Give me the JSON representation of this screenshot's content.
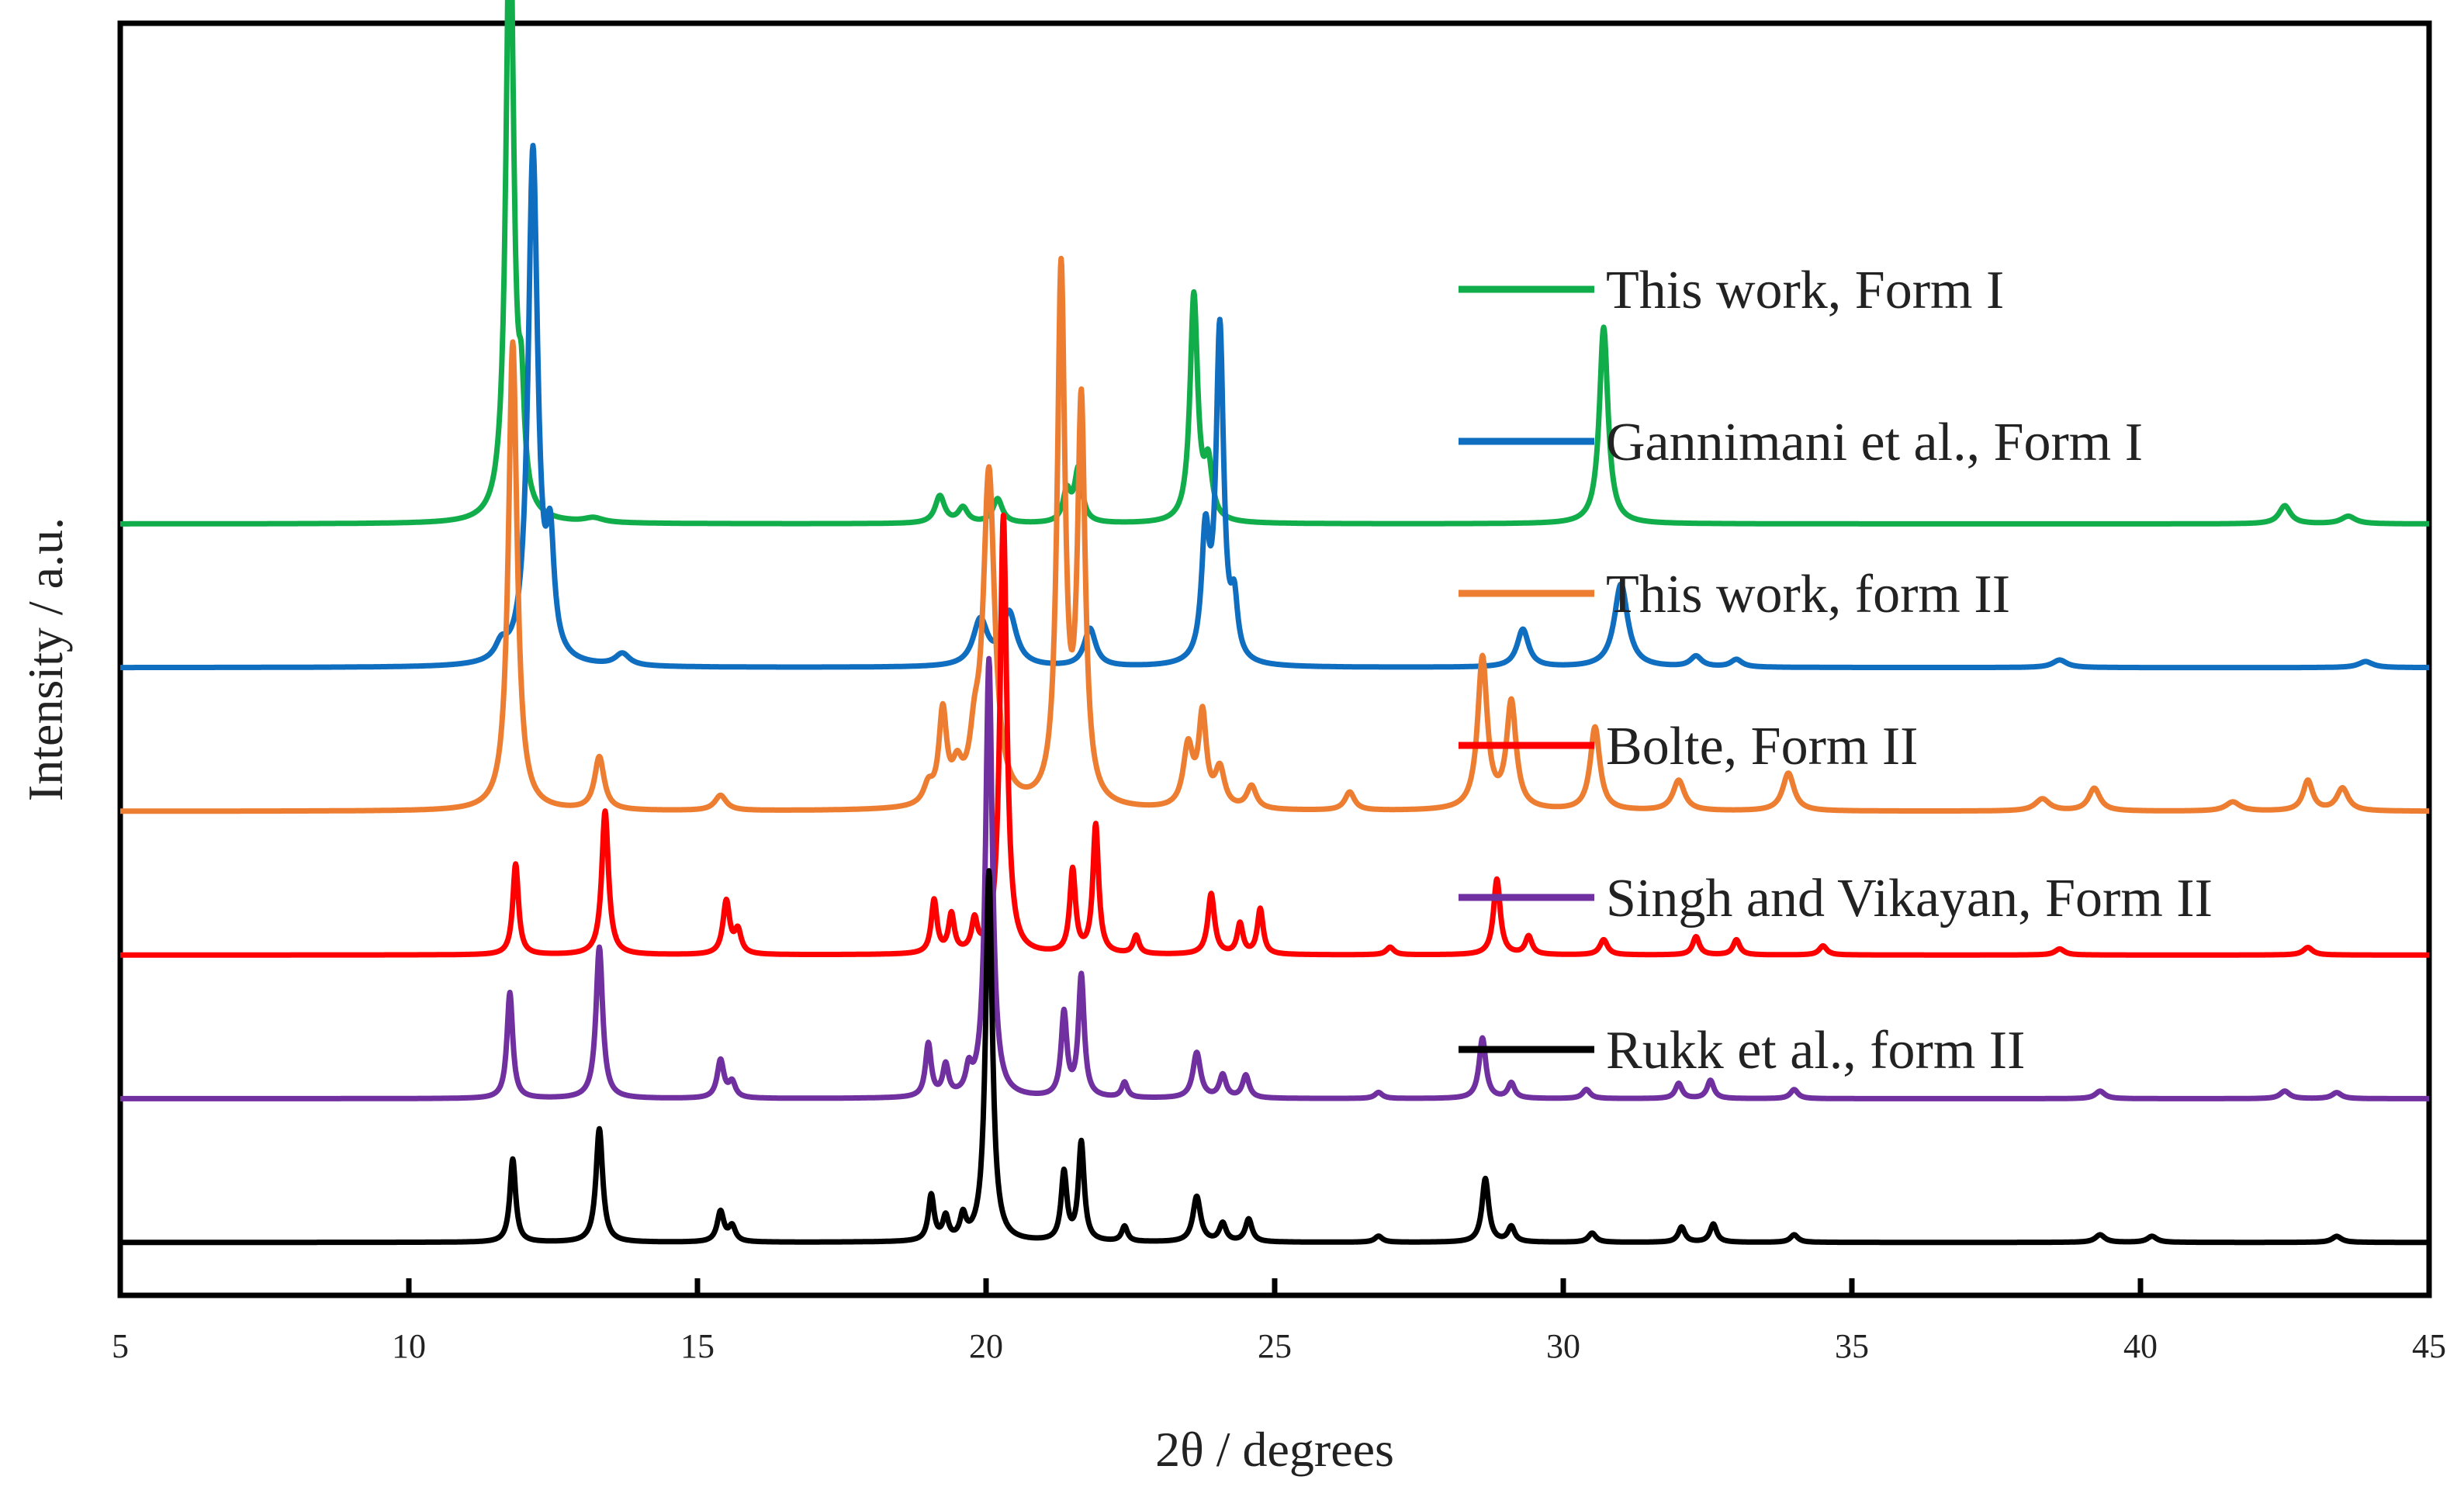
{
  "chart_data": {
    "type": "line",
    "title": "",
    "xlabel": "2θ / degrees",
    "ylabel": "Intensity / a.u.",
    "xlim": [
      5,
      45
    ],
    "x_ticks": [
      5,
      10,
      15,
      20,
      25,
      30,
      35,
      40,
      45
    ],
    "x_tick_labels": [
      "5",
      "10",
      "15",
      "20",
      "25",
      "30",
      "35",
      "40",
      "45"
    ],
    "y_ticks_shown": false,
    "legend_position": "right",
    "series": [
      {
        "name": "This work, Form I",
        "color": "#12ad4b",
        "baseline": 5.1,
        "peaks": [
          [
            11.75,
            4.2,
            0.08
          ],
          [
            11.95,
            0.6,
            0.06
          ],
          [
            13.2,
            0.03,
            0.2
          ],
          [
            19.2,
            0.18,
            0.1
          ],
          [
            19.6,
            0.1,
            0.1
          ],
          [
            20.2,
            0.16,
            0.1
          ],
          [
            21.4,
            0.2,
            0.08
          ],
          [
            21.6,
            0.35,
            0.08
          ],
          [
            23.6,
            1.5,
            0.08
          ],
          [
            23.85,
            0.35,
            0.08
          ],
          [
            30.7,
            1.3,
            0.09
          ],
          [
            42.5,
            0.12,
            0.12
          ],
          [
            43.6,
            0.05,
            0.15
          ]
        ]
      },
      {
        "name": "Gannimani et al., Form I",
        "color": "#0f6ebf",
        "baseline": 4.15,
        "peaks": [
          [
            11.6,
            0.1,
            0.12
          ],
          [
            12.15,
            3.4,
            0.1
          ],
          [
            12.45,
            0.7,
            0.08
          ],
          [
            13.7,
            0.08,
            0.15
          ],
          [
            19.9,
            0.3,
            0.15
          ],
          [
            20.4,
            0.35,
            0.15
          ],
          [
            21.8,
            0.25,
            0.12
          ],
          [
            23.8,
            0.8,
            0.08
          ],
          [
            24.05,
            2.2,
            0.08
          ],
          [
            24.3,
            0.35,
            0.07
          ],
          [
            29.3,
            0.25,
            0.12
          ],
          [
            31.0,
            0.55,
            0.14
          ],
          [
            32.3,
            0.07,
            0.12
          ],
          [
            33.0,
            0.05,
            0.12
          ],
          [
            38.6,
            0.05,
            0.15
          ],
          [
            43.9,
            0.04,
            0.15
          ]
        ]
      },
      {
        "name": "This work, form II",
        "color": "#ed7d31",
        "baseline": 3.2,
        "peaks": [
          [
            11.8,
            3.1,
            0.09
          ],
          [
            13.3,
            0.35,
            0.1
          ],
          [
            15.4,
            0.1,
            0.12
          ],
          [
            19.0,
            0.12,
            0.1
          ],
          [
            19.25,
            0.6,
            0.08
          ],
          [
            19.5,
            0.2,
            0.1
          ],
          [
            19.8,
            0.3,
            0.1
          ],
          [
            20.05,
            2.2,
            0.12
          ],
          [
            21.3,
            3.5,
            0.08
          ],
          [
            21.65,
            2.6,
            0.08
          ],
          [
            23.5,
            0.4,
            0.1
          ],
          [
            23.75,
            0.6,
            0.08
          ],
          [
            24.05,
            0.25,
            0.1
          ],
          [
            24.6,
            0.15,
            0.1
          ],
          [
            26.3,
            0.12,
            0.1
          ],
          [
            28.6,
            1.0,
            0.1
          ],
          [
            29.1,
            0.7,
            0.1
          ],
          [
            30.55,
            0.55,
            0.1
          ],
          [
            32.0,
            0.2,
            0.12
          ],
          [
            33.9,
            0.25,
            0.12
          ],
          [
            38.3,
            0.08,
            0.15
          ],
          [
            39.2,
            0.15,
            0.12
          ],
          [
            41.6,
            0.06,
            0.15
          ],
          [
            42.9,
            0.2,
            0.1
          ],
          [
            43.5,
            0.15,
            0.12
          ]
        ]
      },
      {
        "name": "Bolte, Form II",
        "color": "#ff0000",
        "baseline": 2.25,
        "peaks": [
          [
            11.85,
            0.6,
            0.06
          ],
          [
            13.4,
            0.95,
            0.07
          ],
          [
            15.5,
            0.35,
            0.07
          ],
          [
            15.7,
            0.15,
            0.07
          ],
          [
            19.1,
            0.35,
            0.06
          ],
          [
            19.4,
            0.25,
            0.06
          ],
          [
            19.8,
            0.2,
            0.06
          ],
          [
            20.3,
            2.9,
            0.07
          ],
          [
            21.5,
            0.55,
            0.06
          ],
          [
            21.9,
            0.85,
            0.06
          ],
          [
            22.6,
            0.12,
            0.06
          ],
          [
            23.9,
            0.4,
            0.07
          ],
          [
            24.4,
            0.2,
            0.06
          ],
          [
            24.75,
            0.3,
            0.06
          ],
          [
            27.0,
            0.05,
            0.08
          ],
          [
            28.85,
            0.5,
            0.07
          ],
          [
            29.4,
            0.12,
            0.07
          ],
          [
            30.7,
            0.1,
            0.08
          ],
          [
            32.3,
            0.12,
            0.07
          ],
          [
            33.0,
            0.1,
            0.07
          ],
          [
            34.5,
            0.06,
            0.08
          ],
          [
            38.6,
            0.04,
            0.1
          ],
          [
            42.9,
            0.05,
            0.1
          ]
        ]
      },
      {
        "name": "Singh and Vikayan, Form II",
        "color": "#7030a0",
        "baseline": 1.3,
        "peaks": [
          [
            11.75,
            0.7,
            0.06
          ],
          [
            13.3,
            1.0,
            0.07
          ],
          [
            15.4,
            0.25,
            0.07
          ],
          [
            15.6,
            0.1,
            0.07
          ],
          [
            19.0,
            0.35,
            0.06
          ],
          [
            19.3,
            0.2,
            0.06
          ],
          [
            19.7,
            0.15,
            0.06
          ],
          [
            20.05,
            2.9,
            0.07
          ],
          [
            21.35,
            0.55,
            0.06
          ],
          [
            21.65,
            0.8,
            0.06
          ],
          [
            22.4,
            0.1,
            0.06
          ],
          [
            23.65,
            0.3,
            0.08
          ],
          [
            24.1,
            0.15,
            0.07
          ],
          [
            24.5,
            0.15,
            0.07
          ],
          [
            26.8,
            0.04,
            0.08
          ],
          [
            28.6,
            0.4,
            0.07
          ],
          [
            29.1,
            0.1,
            0.07
          ],
          [
            30.4,
            0.06,
            0.08
          ],
          [
            32.0,
            0.1,
            0.07
          ],
          [
            32.55,
            0.12,
            0.07
          ],
          [
            34.0,
            0.06,
            0.08
          ],
          [
            39.3,
            0.05,
            0.1
          ],
          [
            42.5,
            0.05,
            0.1
          ],
          [
            43.4,
            0.04,
            0.1
          ]
        ]
      },
      {
        "name": "Rukk et al., form II",
        "color": "#000000",
        "baseline": 0.35,
        "peaks": [
          [
            11.8,
            0.55,
            0.06
          ],
          [
            13.3,
            0.75,
            0.07
          ],
          [
            15.4,
            0.2,
            0.07
          ],
          [
            15.6,
            0.1,
            0.07
          ],
          [
            19.05,
            0.3,
            0.06
          ],
          [
            19.3,
            0.15,
            0.06
          ],
          [
            19.6,
            0.15,
            0.06
          ],
          [
            20.05,
            2.45,
            0.07
          ],
          [
            21.35,
            0.45,
            0.06
          ],
          [
            21.65,
            0.65,
            0.06
          ],
          [
            22.4,
            0.1,
            0.06
          ],
          [
            23.65,
            0.3,
            0.08
          ],
          [
            24.1,
            0.12,
            0.07
          ],
          [
            24.55,
            0.15,
            0.07
          ],
          [
            26.8,
            0.04,
            0.08
          ],
          [
            28.65,
            0.42,
            0.07
          ],
          [
            29.1,
            0.1,
            0.07
          ],
          [
            30.5,
            0.06,
            0.08
          ],
          [
            32.05,
            0.1,
            0.07
          ],
          [
            32.6,
            0.12,
            0.07
          ],
          [
            34.0,
            0.05,
            0.08
          ],
          [
            39.3,
            0.05,
            0.1
          ],
          [
            40.2,
            0.04,
            0.1
          ],
          [
            43.4,
            0.04,
            0.1
          ]
        ]
      }
    ]
  }
}
